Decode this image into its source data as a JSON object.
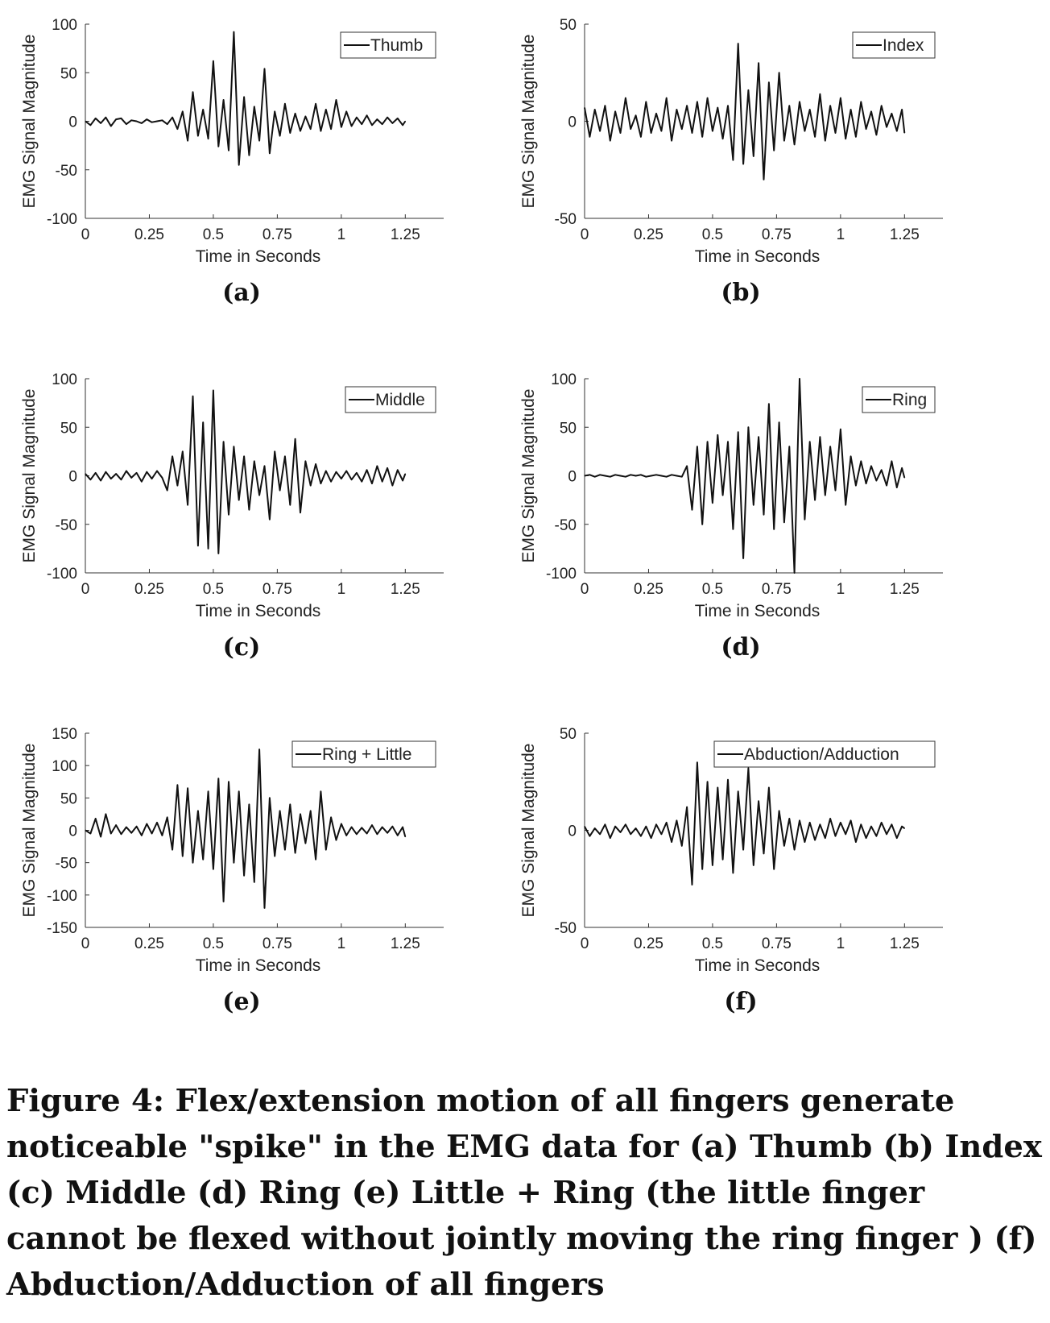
{
  "figure": {
    "caption": "Figure 4: Flex/extension motion of all fingers generate noticeable \"spike\" in the EMG data for (a) Thumb (b) Index (c) Middle (d) Ring (e) Little + Ring (the little finger cannot be flexed without jointly moving the ring finger ) (f) Abduction/Adduction of all fingers"
  },
  "chart_data": [
    {
      "panel": "(a)",
      "type": "line",
      "xlabel": "Time in Seconds",
      "ylabel": "EMG Signal Magnitude",
      "xlim": [
        0,
        1.4
      ],
      "ylim": [
        -100,
        100
      ],
      "xticks": [
        "0",
        "0.25",
        "0.5",
        "0.75",
        "1",
        "1.25"
      ],
      "yticks": [
        "100",
        "50",
        "0",
        "-50",
        "-100"
      ],
      "legend": "Thumb",
      "legend_position": "top-right",
      "series": [
        {
          "name": "Thumb",
          "x": [
            0.0,
            0.02,
            0.04,
            0.06,
            0.08,
            0.1,
            0.12,
            0.14,
            0.16,
            0.18,
            0.2,
            0.22,
            0.24,
            0.26,
            0.28,
            0.3,
            0.32,
            0.34,
            0.36,
            0.38,
            0.4,
            0.42,
            0.44,
            0.46,
            0.48,
            0.5,
            0.52,
            0.54,
            0.56,
            0.58,
            0.6,
            0.62,
            0.64,
            0.66,
            0.68,
            0.7,
            0.72,
            0.74,
            0.76,
            0.78,
            0.8,
            0.82,
            0.84,
            0.86,
            0.88,
            0.9,
            0.92,
            0.94,
            0.96,
            0.98,
            1.0,
            1.02,
            1.04,
            1.06,
            1.08,
            1.1,
            1.12,
            1.14,
            1.16,
            1.18,
            1.2,
            1.22,
            1.24,
            1.25
          ],
          "values": [
            0,
            -4,
            3,
            -2,
            4,
            -5,
            2,
            3,
            -3,
            1,
            0,
            -2,
            2,
            -1,
            0,
            1,
            -3,
            4,
            -8,
            10,
            -20,
            30,
            -15,
            12,
            -18,
            62,
            -26,
            22,
            -30,
            92,
            -45,
            25,
            -35,
            15,
            -20,
            54,
            -33,
            10,
            -15,
            18,
            -12,
            8,
            -10,
            5,
            -8,
            18,
            -10,
            12,
            -8,
            22,
            -6,
            10,
            -5,
            4,
            -3,
            6,
            -4,
            2,
            -3,
            4,
            -2,
            3,
            -4,
            0
          ]
        }
      ]
    },
    {
      "panel": "(b)",
      "type": "line",
      "xlabel": "Time in Seconds",
      "ylabel": "EMG Signal Magnitude",
      "xlim": [
        0,
        1.4
      ],
      "ylim": [
        -50,
        50
      ],
      "xticks": [
        "0",
        "0.25",
        "0.5",
        "0.75",
        "1",
        "1.25"
      ],
      "yticks": [
        "50",
        "0",
        "-50"
      ],
      "legend": "Index",
      "legend_position": "top-right",
      "series": [
        {
          "name": "Index",
          "x": [
            0.0,
            0.02,
            0.04,
            0.06,
            0.08,
            0.1,
            0.12,
            0.14,
            0.16,
            0.18,
            0.2,
            0.22,
            0.24,
            0.26,
            0.28,
            0.3,
            0.32,
            0.34,
            0.36,
            0.38,
            0.4,
            0.42,
            0.44,
            0.46,
            0.48,
            0.5,
            0.52,
            0.54,
            0.56,
            0.58,
            0.6,
            0.62,
            0.64,
            0.66,
            0.68,
            0.7,
            0.72,
            0.74,
            0.76,
            0.78,
            0.8,
            0.82,
            0.84,
            0.86,
            0.88,
            0.9,
            0.92,
            0.94,
            0.96,
            0.98,
            1.0,
            1.02,
            1.04,
            1.06,
            1.08,
            1.1,
            1.12,
            1.14,
            1.16,
            1.18,
            1.2,
            1.22,
            1.24,
            1.25
          ],
          "values": [
            7,
            -8,
            6,
            -5,
            8,
            -10,
            5,
            -6,
            12,
            -4,
            3,
            -8,
            10,
            -6,
            4,
            -5,
            12,
            -10,
            6,
            -4,
            8,
            -6,
            10,
            -8,
            12,
            -5,
            7,
            -9,
            8,
            -20,
            40,
            -22,
            16,
            -18,
            30,
            -30,
            20,
            -15,
            25,
            -10,
            8,
            -12,
            10,
            -5,
            6,
            -8,
            14,
            -10,
            8,
            -6,
            12,
            -9,
            6,
            -8,
            10,
            -4,
            5,
            -7,
            8,
            -3,
            4,
            -5,
            6,
            -6
          ]
        }
      ]
    },
    {
      "panel": "(c)",
      "type": "line",
      "xlabel": "Time in Seconds",
      "ylabel": "EMG Signal Magnitude",
      "xlim": [
        0,
        1.4
      ],
      "ylim": [
        -100,
        100
      ],
      "xticks": [
        "0",
        "0.25",
        "0.5",
        "0.75",
        "1",
        "1.25"
      ],
      "yticks": [
        "100",
        "50",
        "0",
        "-50",
        "-100"
      ],
      "legend": "Middle",
      "legend_position": "top-right",
      "series": [
        {
          "name": "Middle",
          "x": [
            0.0,
            0.02,
            0.04,
            0.06,
            0.08,
            0.1,
            0.12,
            0.14,
            0.16,
            0.18,
            0.2,
            0.22,
            0.24,
            0.26,
            0.28,
            0.3,
            0.32,
            0.34,
            0.36,
            0.38,
            0.4,
            0.42,
            0.44,
            0.46,
            0.48,
            0.5,
            0.52,
            0.54,
            0.56,
            0.58,
            0.6,
            0.62,
            0.64,
            0.66,
            0.68,
            0.7,
            0.72,
            0.74,
            0.76,
            0.78,
            0.8,
            0.82,
            0.84,
            0.86,
            0.88,
            0.9,
            0.92,
            0.94,
            0.96,
            0.98,
            1.0,
            1.02,
            1.04,
            1.06,
            1.08,
            1.1,
            1.12,
            1.14,
            1.16,
            1.18,
            1.2,
            1.22,
            1.24,
            1.25
          ],
          "values": [
            2,
            -4,
            3,
            -5,
            4,
            -3,
            2,
            -4,
            5,
            -2,
            3,
            -6,
            4,
            -3,
            5,
            -2,
            -15,
            20,
            -10,
            25,
            -30,
            82,
            -72,
            55,
            -75,
            88,
            -80,
            35,
            -40,
            30,
            -25,
            20,
            -35,
            15,
            -20,
            10,
            -45,
            25,
            -15,
            20,
            -30,
            38,
            -38,
            15,
            -10,
            12,
            -8,
            5,
            -6,
            4,
            -3,
            5,
            -4,
            3,
            -6,
            6,
            -8,
            10,
            -6,
            8,
            -10,
            6,
            -5,
            2
          ]
        }
      ]
    },
    {
      "panel": "(d)",
      "type": "line",
      "xlabel": "Time in Seconds",
      "ylabel": "EMG Signal Magnitude",
      "xlim": [
        0,
        1.4
      ],
      "ylim": [
        -100,
        100
      ],
      "xticks": [
        "0",
        "0.25",
        "0.5",
        "0.75",
        "1",
        "1.25"
      ],
      "yticks": [
        "100",
        "50",
        "0",
        "-50",
        "-100"
      ],
      "legend": "Ring",
      "legend_position": "top-right",
      "series": [
        {
          "name": "Ring",
          "x": [
            0.0,
            0.02,
            0.04,
            0.06,
            0.08,
            0.1,
            0.12,
            0.14,
            0.16,
            0.18,
            0.2,
            0.22,
            0.24,
            0.26,
            0.28,
            0.3,
            0.32,
            0.34,
            0.36,
            0.38,
            0.4,
            0.42,
            0.44,
            0.46,
            0.48,
            0.5,
            0.52,
            0.54,
            0.56,
            0.58,
            0.6,
            0.62,
            0.64,
            0.66,
            0.68,
            0.7,
            0.72,
            0.74,
            0.76,
            0.78,
            0.8,
            0.82,
            0.84,
            0.86,
            0.88,
            0.9,
            0.92,
            0.94,
            0.96,
            0.98,
            1.0,
            1.02,
            1.04,
            1.06,
            1.08,
            1.1,
            1.12,
            1.14,
            1.16,
            1.18,
            1.2,
            1.22,
            1.24,
            1.25
          ],
          "values": [
            0,
            1,
            -1,
            1,
            0,
            -1,
            1,
            0,
            -1,
            1,
            0,
            1,
            -1,
            0,
            1,
            0,
            -1,
            1,
            0,
            -1,
            10,
            -35,
            30,
            -50,
            35,
            -28,
            42,
            -20,
            35,
            -55,
            45,
            -85,
            50,
            -30,
            40,
            -40,
            74,
            -55,
            55,
            -48,
            30,
            -100,
            100,
            -45,
            35,
            -25,
            40,
            -20,
            30,
            -15,
            48,
            -30,
            20,
            -10,
            15,
            -8,
            10,
            -5,
            6,
            -10,
            15,
            -12,
            8,
            -2
          ]
        }
      ]
    },
    {
      "panel": "(e)",
      "type": "line",
      "xlabel": "Time in Seconds",
      "ylabel": "EMG Signal Magnitude",
      "xlim": [
        0,
        1.4
      ],
      "ylim": [
        -150,
        150
      ],
      "xticks": [
        "0",
        "0.25",
        "0.5",
        "0.75",
        "1",
        "1.25"
      ],
      "yticks": [
        "150",
        "100",
        "50",
        "0",
        "-50",
        "-100",
        "-150"
      ],
      "legend": "Ring + Little",
      "legend_position": "top-right",
      "series": [
        {
          "name": "Ring + Little",
          "x": [
            0.0,
            0.02,
            0.04,
            0.06,
            0.08,
            0.1,
            0.12,
            0.14,
            0.16,
            0.18,
            0.2,
            0.22,
            0.24,
            0.26,
            0.28,
            0.3,
            0.32,
            0.34,
            0.36,
            0.38,
            0.4,
            0.42,
            0.44,
            0.46,
            0.48,
            0.5,
            0.52,
            0.54,
            0.56,
            0.58,
            0.6,
            0.62,
            0.64,
            0.66,
            0.68,
            0.7,
            0.72,
            0.74,
            0.76,
            0.78,
            0.8,
            0.82,
            0.84,
            0.86,
            0.88,
            0.9,
            0.92,
            0.94,
            0.96,
            0.98,
            1.0,
            1.02,
            1.04,
            1.06,
            1.08,
            1.1,
            1.12,
            1.14,
            1.16,
            1.18,
            1.2,
            1.22,
            1.24,
            1.25
          ],
          "values": [
            0,
            -5,
            18,
            -10,
            25,
            -5,
            8,
            -6,
            5,
            -4,
            6,
            -8,
            10,
            -5,
            12,
            -8,
            20,
            -30,
            70,
            -40,
            65,
            -50,
            30,
            -45,
            60,
            -60,
            80,
            -110,
            75,
            -50,
            60,
            -70,
            40,
            -80,
            125,
            -120,
            50,
            -40,
            30,
            -30,
            40,
            -35,
            25,
            -20,
            30,
            -45,
            60,
            -30,
            20,
            -15,
            10,
            -8,
            5,
            -6,
            4,
            -5,
            8,
            -6,
            5,
            -4,
            6,
            -8,
            5,
            -10
          ]
        }
      ]
    },
    {
      "panel": "(f)",
      "type": "line",
      "xlabel": "Time in Seconds",
      "ylabel": "EMG Signal Magnitude",
      "xlim": [
        0,
        1.4
      ],
      "ylim": [
        -50,
        50
      ],
      "xticks": [
        "0",
        "0.25",
        "0.5",
        "0.75",
        "1",
        "1.25"
      ],
      "yticks": [
        "50",
        "0",
        "-50"
      ],
      "legend": "Abduction/Adduction",
      "legend_position": "top-right",
      "series": [
        {
          "name": "Abduction/Adduction",
          "x": [
            0.0,
            0.02,
            0.04,
            0.06,
            0.08,
            0.1,
            0.12,
            0.14,
            0.16,
            0.18,
            0.2,
            0.22,
            0.24,
            0.26,
            0.28,
            0.3,
            0.32,
            0.34,
            0.36,
            0.38,
            0.4,
            0.42,
            0.44,
            0.46,
            0.48,
            0.5,
            0.52,
            0.54,
            0.56,
            0.58,
            0.6,
            0.62,
            0.64,
            0.66,
            0.68,
            0.7,
            0.72,
            0.74,
            0.76,
            0.78,
            0.8,
            0.82,
            0.84,
            0.86,
            0.88,
            0.9,
            0.92,
            0.94,
            0.96,
            0.98,
            1.0,
            1.02,
            1.04,
            1.06,
            1.08,
            1.1,
            1.12,
            1.14,
            1.16,
            1.18,
            1.2,
            1.22,
            1.24,
            1.25
          ],
          "values": [
            2,
            -3,
            1,
            -2,
            3,
            -4,
            2,
            -1,
            3,
            -2,
            1,
            -3,
            2,
            -4,
            3,
            -2,
            4,
            -6,
            5,
            -8,
            12,
            -28,
            35,
            -20,
            25,
            -18,
            22,
            -15,
            26,
            -22,
            20,
            -10,
            32,
            -18,
            15,
            -12,
            22,
            -20,
            10,
            -8,
            6,
            -10,
            5,
            -6,
            4,
            -5,
            3,
            -4,
            6,
            -3,
            4,
            -2,
            5,
            -6,
            3,
            -4,
            2,
            -3,
            4,
            -2,
            3,
            -4,
            2,
            1
          ]
        }
      ]
    }
  ]
}
